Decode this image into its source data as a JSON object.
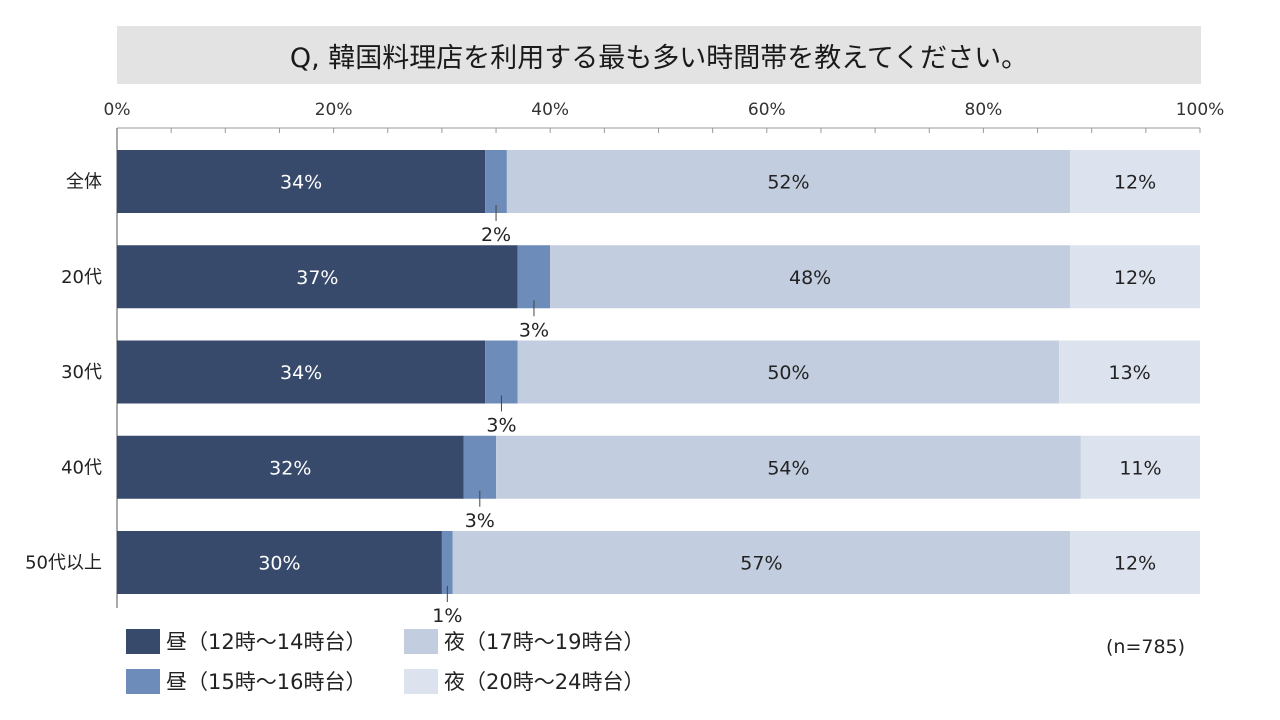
{
  "title": "Q, 韓国料理店を利用する最も多い時間帯を教えてください。",
  "note": "(n=785)",
  "colors": {
    "series": [
      "#374a6b",
      "#6d8cba",
      "#c3cde0",
      "#dde3ee"
    ],
    "label_light": "#ffffff",
    "label_dark": "#222222",
    "title_bg": "#e3e3e3"
  },
  "chart_data": {
    "type": "bar",
    "orientation": "horizontal",
    "stacked": true,
    "title": "Q, 韓国料理店を利用する最も多い時間帯を教えてください。",
    "categories": [
      "全体",
      "20代",
      "30代",
      "40代",
      "50代以上"
    ],
    "x_ticks": [
      "0%",
      "20%",
      "40%",
      "60%",
      "80%",
      "100%"
    ],
    "xlim": [
      0,
      100
    ],
    "series": [
      {
        "name": "昼（12時～14時台）",
        "values": [
          34,
          37,
          34,
          32,
          30
        ],
        "labels": [
          "34%",
          "37%",
          "34%",
          "32%",
          "30%"
        ]
      },
      {
        "name": "昼（15時～16時台）",
        "values": [
          2,
          3,
          3,
          3,
          1
        ],
        "labels": [
          "2%",
          "3%",
          "3%",
          "3%",
          "1%"
        ]
      },
      {
        "name": "夜（17時～19時台）",
        "values": [
          52,
          48,
          50,
          54,
          57
        ],
        "labels": [
          "52%",
          "48%",
          "50%",
          "54%",
          "57%"
        ]
      },
      {
        "name": "夜（20時～24時台）",
        "values": [
          12,
          12,
          13,
          11,
          12
        ],
        "labels": [
          "12%",
          "12%",
          "13%",
          "11%",
          "12%"
        ]
      }
    ],
    "legend_position": "bottom"
  }
}
